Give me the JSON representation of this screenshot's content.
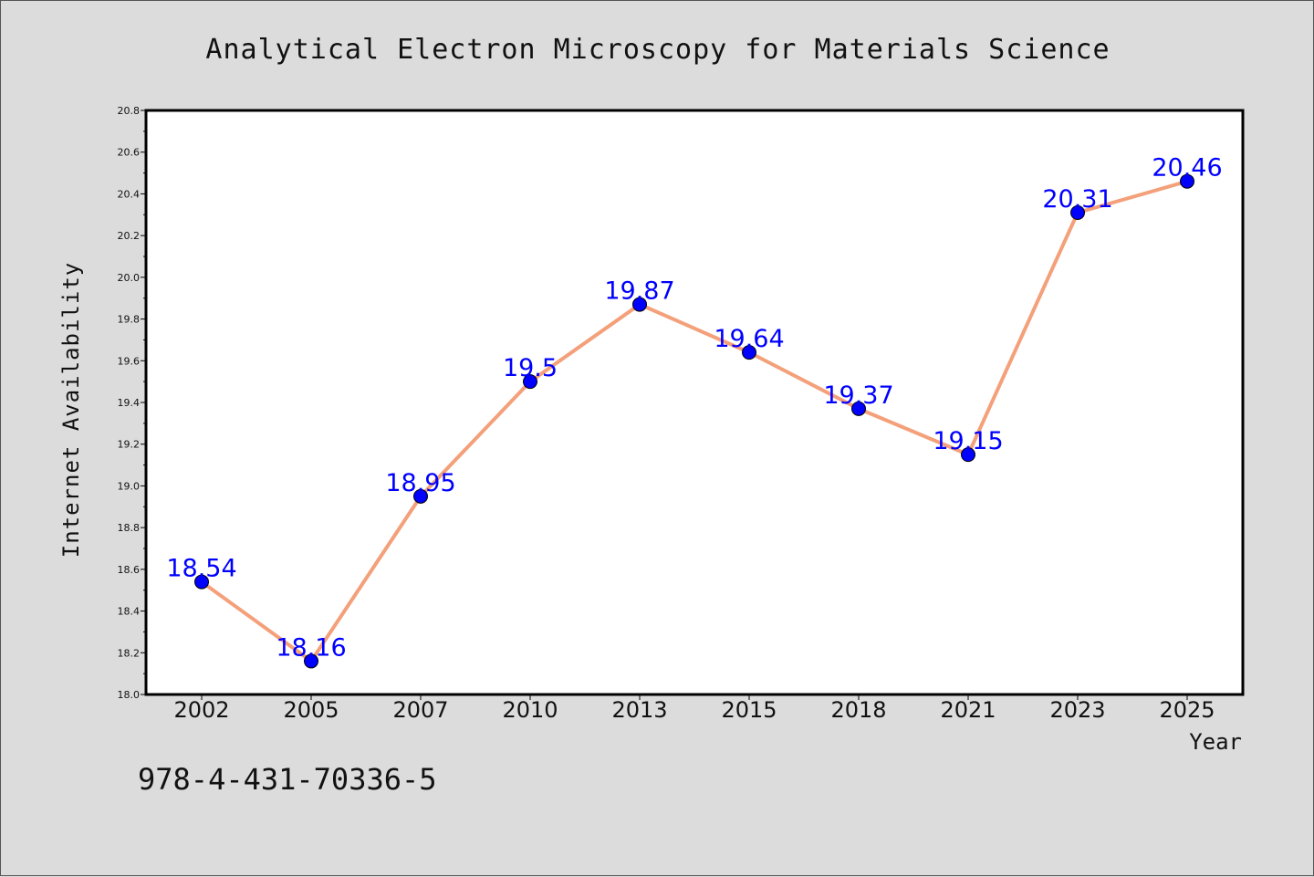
{
  "chart_data": {
    "type": "line",
    "title": "Analytical Electron Microscopy for Materials Science",
    "xlabel": "Year",
    "ylabel": "Internet Availability",
    "categories": [
      "2002",
      "2005",
      "2007",
      "2010",
      "2013",
      "2015",
      "2018",
      "2021",
      "2023",
      "2025"
    ],
    "series": [
      {
        "values": [
          18.54,
          18.16,
          18.95,
          19.5,
          19.87,
          19.64,
          19.37,
          19.15,
          20.31,
          20.46
        ]
      }
    ],
    "data_labels": [
      "18.54",
      "18.16",
      "18.95",
      "19.5",
      "19.87",
      "19.64",
      "19.37",
      "19.15",
      "20.31",
      "20.46"
    ],
    "ylim": [
      18.0,
      20.8
    ],
    "yticks": [
      "18.0",
      "18.2",
      "18.4",
      "18.6",
      "18.8",
      "19.0",
      "19.2",
      "19.4",
      "19.6",
      "19.8",
      "20.0",
      "20.2",
      "20.4",
      "20.6",
      "20.8"
    ],
    "grid": false,
    "colors": {
      "line": "#f4a07a",
      "marker": "#0000ff",
      "label": "#0000ff"
    }
  },
  "footer": {
    "isbn": "978-4-431-70336-5"
  }
}
